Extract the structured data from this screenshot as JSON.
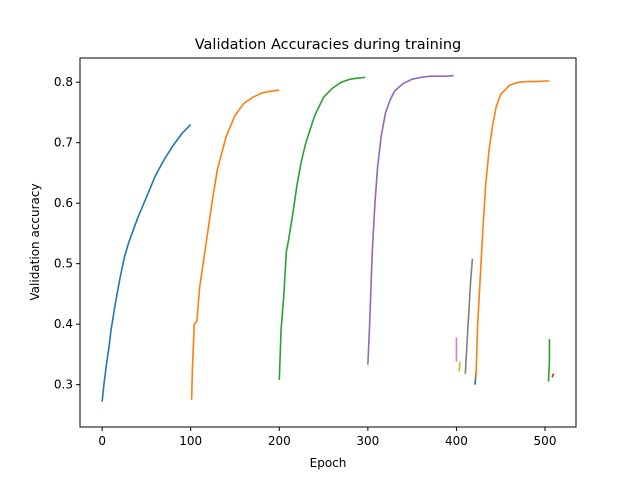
{
  "chart_data": {
    "type": "line",
    "title": "Validation Accuracies during training",
    "xlabel": "Epoch",
    "ylabel": "Validation accuracy",
    "xlim": [
      -25,
      535
    ],
    "ylim": [
      0.23,
      0.84
    ],
    "xticks": [
      0,
      100,
      200,
      300,
      400,
      500
    ],
    "yticks": [
      0.3,
      0.4,
      0.5,
      0.6,
      0.7,
      0.8
    ],
    "grid": false,
    "legend": "none",
    "series": [
      {
        "color": "#1f77b4",
        "points": [
          [
            0,
            0.272
          ],
          [
            2,
            0.3
          ],
          [
            5,
            0.335
          ],
          [
            8,
            0.365
          ],
          [
            10,
            0.39
          ],
          [
            15,
            0.435
          ],
          [
            20,
            0.475
          ],
          [
            25,
            0.51
          ],
          [
            30,
            0.535
          ],
          [
            40,
            0.575
          ],
          [
            50,
            0.61
          ],
          [
            60,
            0.645
          ],
          [
            70,
            0.672
          ],
          [
            80,
            0.695
          ],
          [
            90,
            0.715
          ],
          [
            100,
            0.73
          ]
        ]
      },
      {
        "color": "#ff7f0e",
        "points": [
          [
            101,
            0.275
          ],
          [
            102,
            0.33
          ],
          [
            104,
            0.4
          ],
          [
            107,
            0.405
          ],
          [
            110,
            0.46
          ],
          [
            115,
            0.51
          ],
          [
            120,
            0.56
          ],
          [
            125,
            0.61
          ],
          [
            130,
            0.655
          ],
          [
            140,
            0.71
          ],
          [
            150,
            0.745
          ],
          [
            160,
            0.765
          ],
          [
            170,
            0.775
          ],
          [
            180,
            0.782
          ],
          [
            190,
            0.785
          ],
          [
            200,
            0.787
          ]
        ]
      },
      {
        "color": "#2ca02c",
        "points": [
          [
            200,
            0.308
          ],
          [
            202,
            0.39
          ],
          [
            205,
            0.445
          ],
          [
            208,
            0.52
          ],
          [
            210,
            0.535
          ],
          [
            215,
            0.58
          ],
          [
            220,
            0.63
          ],
          [
            225,
            0.67
          ],
          [
            230,
            0.7
          ],
          [
            240,
            0.745
          ],
          [
            250,
            0.775
          ],
          [
            260,
            0.79
          ],
          [
            270,
            0.8
          ],
          [
            280,
            0.805
          ],
          [
            290,
            0.807
          ],
          [
            297,
            0.808
          ]
        ]
      },
      {
        "color": "#9467bd",
        "points": [
          [
            300,
            0.333
          ],
          [
            302,
            0.4
          ],
          [
            305,
            0.52
          ],
          [
            308,
            0.6
          ],
          [
            311,
            0.66
          ],
          [
            315,
            0.71
          ],
          [
            320,
            0.75
          ],
          [
            325,
            0.77
          ],
          [
            330,
            0.785
          ],
          [
            340,
            0.798
          ],
          [
            350,
            0.805
          ],
          [
            360,
            0.808
          ],
          [
            370,
            0.81
          ],
          [
            380,
            0.81
          ],
          [
            390,
            0.81
          ],
          [
            397,
            0.811
          ]
        ]
      },
      {
        "color": "#e377c2",
        "points": [
          [
            400,
            0.338
          ],
          [
            400,
            0.378
          ]
        ]
      },
      {
        "color": "#bcbd22",
        "points": [
          [
            403,
            0.322
          ],
          [
            404,
            0.338
          ]
        ]
      },
      {
        "color": "#7f7f7f",
        "points": [
          [
            410,
            0.318
          ],
          [
            412,
            0.37
          ],
          [
            414,
            0.42
          ],
          [
            416,
            0.47
          ],
          [
            418,
            0.508
          ]
        ]
      },
      {
        "color": "#1f77b4",
        "points": [
          [
            421,
            0.3
          ],
          [
            422,
            0.32
          ]
        ]
      },
      {
        "color": "#ff7f0e",
        "points": [
          [
            422,
            0.31
          ],
          [
            424,
            0.4
          ],
          [
            427,
            0.48
          ],
          [
            430,
            0.56
          ],
          [
            433,
            0.63
          ],
          [
            437,
            0.69
          ],
          [
            441,
            0.73
          ],
          [
            445,
            0.76
          ],
          [
            450,
            0.78
          ],
          [
            460,
            0.795
          ],
          [
            470,
            0.8
          ],
          [
            480,
            0.801
          ],
          [
            490,
            0.801
          ],
          [
            500,
            0.802
          ],
          [
            505,
            0.802
          ]
        ]
      },
      {
        "color": "#2ca02c",
        "points": [
          [
            504,
            0.305
          ],
          [
            505,
            0.34
          ],
          [
            505,
            0.375
          ]
        ]
      },
      {
        "color": "#d62728",
        "points": [
          [
            508,
            0.312
          ],
          [
            509,
            0.316
          ],
          [
            510,
            0.318
          ]
        ]
      }
    ]
  }
}
